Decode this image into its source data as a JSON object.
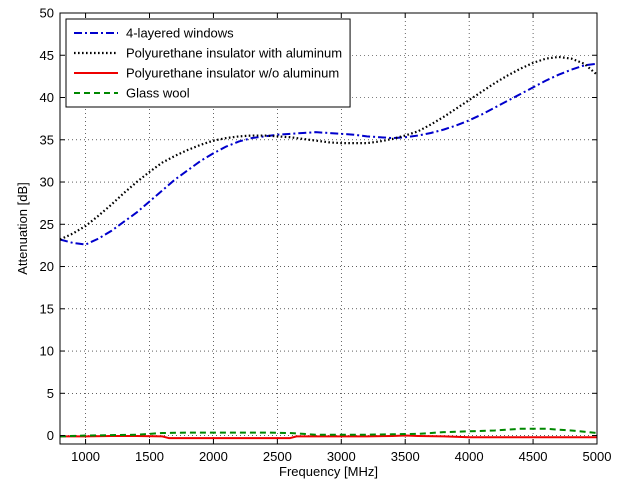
{
  "chart_data": {
    "type": "line",
    "title": "",
    "xlabel": "Frequency [MHz]",
    "ylabel": "Attenuation [dB]",
    "xlim": [
      800,
      5000
    ],
    "ylim": [
      -1,
      50
    ],
    "xticks": [
      1000,
      1500,
      2000,
      2500,
      3000,
      3500,
      4000,
      4500,
      5000
    ],
    "yticks": [
      0,
      5,
      10,
      15,
      20,
      25,
      30,
      35,
      40,
      45,
      50
    ],
    "grid": true,
    "legend": "top-left",
    "series": [
      {
        "name": "4-layered windows",
        "color": "#0000cc",
        "style": "dash-dot",
        "x": [
          800,
          900,
          1000,
          1100,
          1200,
          1300,
          1400,
          1500,
          1600,
          1700,
          1800,
          1900,
          2000,
          2100,
          2200,
          2300,
          2400,
          2500,
          2600,
          2700,
          2800,
          2900,
          3000,
          3100,
          3200,
          3300,
          3400,
          3500,
          3600,
          3700,
          3800,
          3900,
          4000,
          4100,
          4200,
          4300,
          4400,
          4500,
          4600,
          4700,
          4800,
          4900,
          5000
        ],
        "y": [
          23.2,
          22.8,
          22.6,
          23.3,
          24.2,
          25.3,
          26.4,
          27.7,
          29.0,
          30.3,
          31.4,
          32.5,
          33.4,
          34.2,
          34.8,
          35.2,
          35.4,
          35.6,
          35.7,
          35.8,
          35.9,
          35.8,
          35.7,
          35.6,
          35.4,
          35.3,
          35.2,
          35.3,
          35.5,
          35.8,
          36.2,
          36.7,
          37.3,
          38.0,
          38.8,
          39.6,
          40.4,
          41.2,
          42.0,
          42.7,
          43.3,
          43.8,
          44.0
        ]
      },
      {
        "name": "Polyurethane insulator with aluminum",
        "color": "#000000",
        "style": "dotted",
        "x": [
          800,
          900,
          1000,
          1100,
          1200,
          1300,
          1400,
          1500,
          1600,
          1700,
          1800,
          1900,
          2000,
          2100,
          2200,
          2300,
          2400,
          2500,
          2600,
          2700,
          2800,
          2900,
          3000,
          3100,
          3200,
          3300,
          3400,
          3500,
          3600,
          3700,
          3800,
          3900,
          4000,
          4100,
          4200,
          4300,
          4400,
          4500,
          4600,
          4700,
          4800,
          4900,
          5000
        ],
        "y": [
          23.2,
          23.9,
          24.8,
          26.0,
          27.3,
          28.7,
          30.0,
          31.2,
          32.3,
          33.1,
          33.8,
          34.4,
          34.9,
          35.2,
          35.4,
          35.5,
          35.5,
          35.4,
          35.3,
          35.1,
          34.9,
          34.7,
          34.6,
          34.6,
          34.6,
          34.8,
          35.1,
          35.5,
          36.0,
          36.8,
          37.7,
          38.7,
          39.7,
          40.7,
          41.7,
          42.6,
          43.4,
          44.1,
          44.6,
          44.8,
          44.6,
          44.0,
          42.7
        ]
      },
      {
        "name": "Polyurethane insulator w/o aluminum",
        "color": "#ee0000",
        "style": "solid",
        "x": [
          800,
          1000,
          1200,
          1400,
          1600,
          1650,
          1800,
          2000,
          2200,
          2400,
          2600,
          2650,
          2800,
          3000,
          3200,
          3400,
          3500,
          3600,
          3800,
          4000,
          4200,
          4400,
          4600,
          4800,
          5000
        ],
        "y": [
          -0.1,
          -0.1,
          -0.05,
          -0.05,
          -0.1,
          -0.3,
          -0.3,
          -0.3,
          -0.3,
          -0.3,
          -0.3,
          -0.1,
          -0.1,
          -0.1,
          -0.1,
          -0.05,
          0.0,
          -0.05,
          -0.1,
          -0.2,
          -0.2,
          -0.2,
          -0.2,
          -0.2,
          -0.2
        ]
      },
      {
        "name": "Glass wool",
        "color": "#008800",
        "style": "dashed",
        "x": [
          800,
          1000,
          1200,
          1400,
          1600,
          1800,
          2000,
          2200,
          2400,
          2600,
          2800,
          3000,
          3200,
          3400,
          3600,
          3800,
          4000,
          4200,
          4400,
          4600,
          4800,
          5000
        ],
        "y": [
          -0.1,
          0.0,
          0.05,
          0.1,
          0.3,
          0.35,
          0.35,
          0.35,
          0.35,
          0.3,
          0.1,
          0.1,
          0.1,
          0.15,
          0.2,
          0.4,
          0.5,
          0.6,
          0.8,
          0.8,
          0.6,
          0.3
        ]
      }
    ]
  }
}
